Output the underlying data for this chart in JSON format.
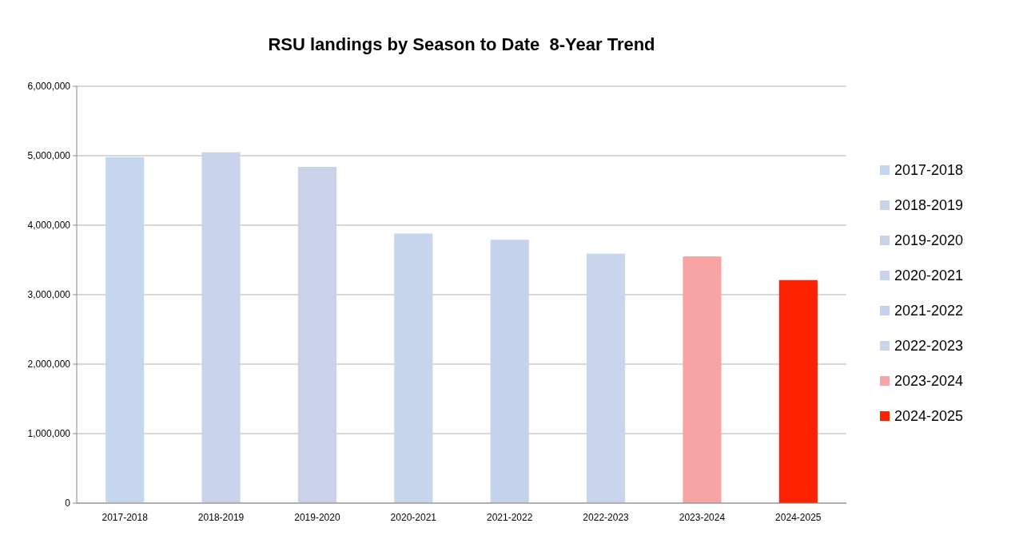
{
  "chart_data": {
    "type": "bar",
    "title": "RSU landings by Season to Date  8-Year Trend",
    "stacked": true,
    "categories": [
      "2017-2018",
      "2018-2019",
      "2019-2020",
      "2020-2021",
      "2021-2022",
      "2022-2023",
      "2023-2024",
      "2024-2025"
    ],
    "series": [
      {
        "name": "2017-2018",
        "color": "#c6d6ee",
        "values": [
          4980000,
          null,
          null,
          null,
          null,
          null,
          null,
          null
        ]
      },
      {
        "name": "2018-2019",
        "color": "#c9d3ec",
        "values": [
          null,
          5050000,
          null,
          null,
          null,
          null,
          null,
          null
        ]
      },
      {
        "name": "2019-2020",
        "color": "#cad2ea",
        "values": [
          null,
          null,
          4840000,
          null,
          null,
          null,
          null,
          null
        ]
      },
      {
        "name": "2020-2021",
        "color": "#c6d4ec",
        "values": [
          null,
          null,
          null,
          3880000,
          null,
          null,
          null,
          null
        ]
      },
      {
        "name": "2021-2022",
        "color": "#c4d2eb",
        "values": [
          null,
          null,
          null,
          null,
          3790000,
          null,
          null,
          null
        ]
      },
      {
        "name": "2022-2023",
        "color": "#c8d5ed",
        "values": [
          null,
          null,
          null,
          null,
          null,
          3590000,
          null,
          null
        ]
      },
      {
        "name": "2023-2024",
        "color": "#f8a4a4",
        "values": [
          null,
          null,
          null,
          null,
          null,
          null,
          3550000,
          null
        ]
      },
      {
        "name": "2024-2025",
        "color": "#ff2200",
        "values": [
          null,
          null,
          null,
          null,
          null,
          null,
          null,
          3210000
        ]
      }
    ],
    "ylim": [
      0,
      6000000
    ],
    "yticks": [
      {
        "value": 0,
        "label": "0"
      },
      {
        "value": 1000000,
        "label": "1,000,000"
      },
      {
        "value": 2000000,
        "label": "2,000,000"
      },
      {
        "value": 3000000,
        "label": "3,000,000"
      },
      {
        "value": 4000000,
        "label": "4,000,000"
      },
      {
        "value": 5000000,
        "label": "5,000,000"
      },
      {
        "value": 6000000,
        "label": "6,000,000"
      }
    ],
    "grid": "y",
    "legend": "right"
  }
}
